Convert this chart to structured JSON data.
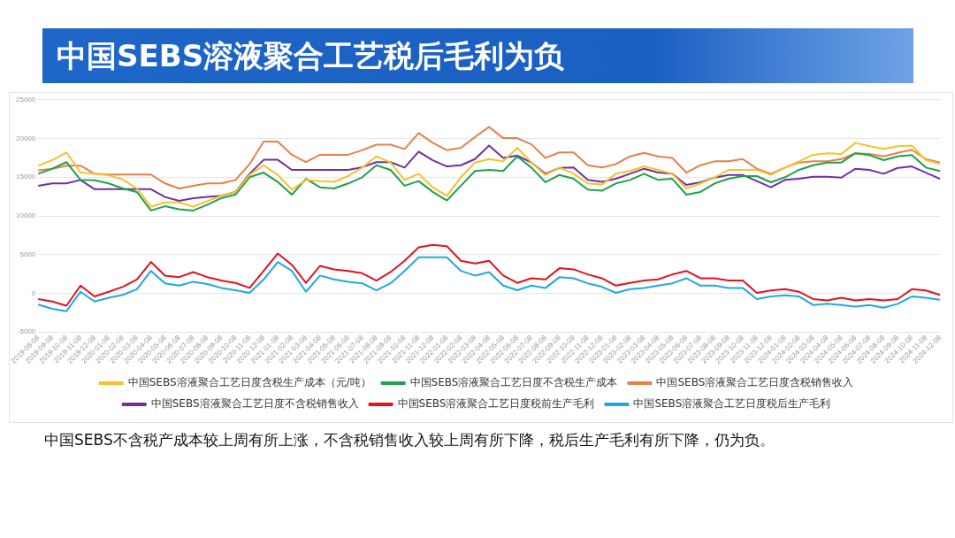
{
  "chart_data": {
    "type": "line",
    "title": "中国SEBS溶液聚合工艺税后毛利为负",
    "categories": [
      "2019-08-08",
      "2019-09-08",
      "2019-10-08",
      "2019-11-08",
      "2019-12-08",
      "2020-01-08",
      "2020-02-08",
      "2020-03-08",
      "2020-04-08",
      "2020-05-08",
      "2020-06-08",
      "2020-07-08",
      "2020-08-08",
      "2020-09-08",
      "2020-10-08",
      "2020-11-08",
      "2020-12-08",
      "2021-01-08",
      "2021-02-08",
      "2021-03-08",
      "2021-04-08",
      "2021-05-08",
      "2021-06-08",
      "2021-07-08",
      "2021-08-08",
      "2021-09-08",
      "2021-10-08",
      "2021-11-08",
      "2021-12-08",
      "2022-01-08",
      "2022-02-08",
      "2022-03-08",
      "2022-04-08",
      "2022-05-08",
      "2022-06-08",
      "2022-07-08",
      "2022-08-08",
      "2022-09-08",
      "2022-10-08",
      "2022-11-08",
      "2022-12-08",
      "2023-01-08",
      "2023-02-08",
      "2023-03-08",
      "2023-04-08",
      "2023-05-08",
      "2023-06-08",
      "2023-07-08",
      "2023-08-08",
      "2023-09-08",
      "2023-10-08",
      "2023-11-08",
      "2023-12-08",
      "2024-01-08",
      "2024-02-08",
      "2024-03-08",
      "2024-04-08",
      "2024-05-08",
      "2024-06-08",
      "2024-07-08",
      "2024-08-08",
      "2024-09-08",
      "2024-10-08",
      "2024-11-08",
      "2024-12-08"
    ],
    "series": [
      {
        "name": "中国SEBS溶液聚合工艺日度含税生产成本（元/吨）",
        "color": "#f5c12c",
        "values": [
          16500,
          17200,
          18200,
          15600,
          15450,
          15250,
          14700,
          13550,
          11200,
          11750,
          11750,
          11200,
          11900,
          12600,
          13100,
          15300,
          16550,
          15300,
          13400,
          14650,
          14500,
          14400,
          15150,
          16250,
          17700,
          16900,
          14650,
          15450,
          13700,
          12600,
          15000,
          16900,
          17350,
          17050,
          18800,
          16900,
          15300,
          16250,
          15450,
          14200,
          14050,
          15450,
          15800,
          16400,
          15950,
          15450,
          13550,
          14200,
          14950,
          15950,
          15950,
          15950,
          15300,
          16250,
          17050,
          17900,
          18100,
          18000,
          19450,
          19000,
          18650,
          19000,
          19100,
          17200,
          16750
        ]
      },
      {
        "name": "中国SEBS溶液聚合工艺日度不含税生产成本",
        "color": "#1ea24a",
        "values": [
          15450,
          16100,
          16950,
          14650,
          14600,
          14200,
          13550,
          13100,
          10700,
          11250,
          10850,
          10700,
          11450,
          12300,
          12750,
          15000,
          15600,
          14400,
          12750,
          14800,
          13700,
          13550,
          14200,
          15000,
          16550,
          15950,
          13900,
          14500,
          13100,
          12000,
          13900,
          15800,
          15950,
          15800,
          17700,
          16250,
          14350,
          15300,
          14800,
          13400,
          13250,
          14200,
          14650,
          15450,
          14650,
          14800,
          12750,
          13100,
          14200,
          14800,
          15150,
          15150,
          14350,
          15000,
          15950,
          16550,
          16900,
          16900,
          18100,
          17850,
          17200,
          17700,
          17850,
          16250,
          15800
        ]
      },
      {
        "name": "中国SEBS溶液聚合工艺日度含税销售收入",
        "color": "#e8804a",
        "values": [
          15900,
          16100,
          16500,
          16500,
          15450,
          15350,
          15350,
          15350,
          15350,
          14200,
          13550,
          13900,
          14200,
          14200,
          14650,
          16700,
          19600,
          19600,
          17900,
          16950,
          17900,
          17900,
          17900,
          18500,
          19200,
          19200,
          18650,
          20700,
          19450,
          18500,
          18800,
          20200,
          21500,
          20050,
          20050,
          19250,
          17500,
          18200,
          18200,
          16550,
          16250,
          16700,
          17700,
          18150,
          17700,
          17500,
          15600,
          16550,
          17050,
          17050,
          17350,
          16100,
          15450,
          16250,
          16900,
          17050,
          17050,
          17350,
          18100,
          18000,
          17700,
          18150,
          18550,
          17350,
          16900
        ]
      },
      {
        "name": "中国SEBS溶液聚合工艺日度不含税销售收入",
        "color": "#7030a0",
        "values": [
          13900,
          14200,
          14200,
          14650,
          13450,
          13450,
          13450,
          13450,
          13450,
          12450,
          11950,
          12300,
          12450,
          12600,
          13100,
          15450,
          17250,
          17250,
          15950,
          15950,
          15950,
          15950,
          15950,
          16300,
          16950,
          16950,
          16250,
          18300,
          17200,
          16400,
          16550,
          17350,
          19100,
          17500,
          17800,
          16900,
          15450,
          16200,
          16250,
          14650,
          14400,
          14800,
          15450,
          16100,
          15600,
          15450,
          14000,
          14350,
          14950,
          15300,
          15300,
          14500,
          13700,
          14650,
          14800,
          15050,
          15050,
          14950,
          16100,
          15950,
          15450,
          16200,
          16400,
          15600,
          14800
        ]
      },
      {
        "name": "中国SEBS溶液聚合工艺日度税前生产毛利",
        "color": "#e0141c",
        "values": [
          -730,
          -1050,
          -1600,
          1000,
          -400,
          200,
          850,
          1800,
          4050,
          2300,
          2100,
          2750,
          2100,
          1650,
          1350,
          700,
          2900,
          5150,
          3700,
          1350,
          3550,
          3100,
          2900,
          2600,
          1650,
          2750,
          4200,
          5950,
          6250,
          6100,
          4200,
          3850,
          4200,
          2300,
          1350,
          1950,
          1800,
          3250,
          3100,
          2450,
          1950,
          1000,
          1350,
          1650,
          1800,
          2450,
          2900,
          1950,
          1950,
          1650,
          1650,
          60,
          380,
          540,
          200,
          -730,
          -900,
          -570,
          -900,
          -730,
          -900,
          -730,
          540,
          380,
          -200
        ]
      },
      {
        "name": "中国SEBS溶液聚合工艺日度税后生产毛利",
        "color": "#20a8e0",
        "values": [
          -1460,
          -2000,
          -2300,
          200,
          -1050,
          -570,
          -200,
          540,
          2900,
          1300,
          1000,
          1500,
          1200,
          700,
          400,
          60,
          1800,
          4050,
          2900,
          200,
          2300,
          1800,
          1500,
          1300,
          400,
          1300,
          2900,
          4650,
          4650,
          4650,
          2900,
          2300,
          2750,
          1000,
          400,
          1000,
          700,
          2100,
          1950,
          1300,
          850,
          60,
          540,
          700,
          1000,
          1300,
          1950,
          1000,
          1000,
          700,
          700,
          -730,
          -400,
          -250,
          -400,
          -1500,
          -1350,
          -1500,
          -1700,
          -1500,
          -1850,
          -1350,
          -400,
          -570,
          -830
        ]
      }
    ],
    "ylim": [
      -5000,
      25000
    ],
    "yticks": [
      -5000,
      0,
      5000,
      10000,
      15000,
      20000,
      25000
    ],
    "grid": "y",
    "legend": "bottom",
    "marker": "none",
    "line_style": "solid",
    "annotations": [
      "中国SEBS不含税产成本较上周有所上涨，不含税销售收入较上周有所下降，税后生产毛利有所下降，仍为负。"
    ]
  }
}
